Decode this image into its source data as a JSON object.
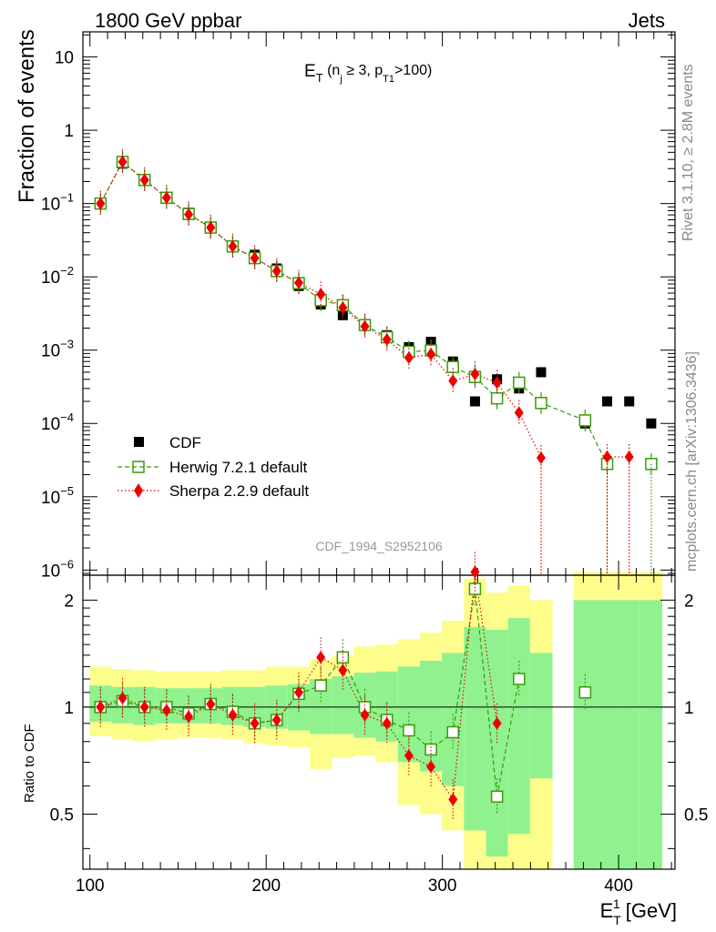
{
  "header": {
    "left": "1800 GeV ppbar",
    "right": "Jets"
  },
  "side_labels": {
    "rivet": "Rivet 3.1.10, ≥ 2.8M events",
    "mcplots": "mcplots.cern.ch [arXiv:1306.3436]"
  },
  "chart_data": {
    "type": "scatter",
    "title_main": "E",
    "title_sub": "T",
    "title_rest_1": " (n",
    "title_sub_j": "j",
    "title_rest_2": " ≥ 3, p",
    "title_sub_t1": "T1",
    "title_rest_3": ">100)",
    "analysis_id": "CDF_1994_S2952106",
    "ylabel": "Fraction of events",
    "ratio_ylabel": "Ratio to CDF",
    "xlabel_main": "E",
    "xlabel_sup": "1",
    "xlabel_sub": "T",
    "xlabel_unit": " [GeV]",
    "xlim": [
      96,
      432
    ],
    "ylim": [
      8.5e-07,
      22
    ],
    "yscale": "log",
    "ratio_ylim": [
      0.35,
      2.35
    ],
    "ratio_yscale": "log",
    "x_ticks": [
      "100",
      "200",
      "300",
      "400"
    ],
    "y_ticks": [
      "10",
      "1",
      "10^-1",
      "10^-2",
      "10^-3",
      "10^-4",
      "10^-5",
      "10^-6"
    ],
    "ratio_ticks": [
      "0.5",
      "1",
      "2"
    ],
    "x": [
      106,
      118.5,
      131,
      143.5,
      156,
      168.5,
      181,
      193.5,
      206,
      218.5,
      231,
      243.5,
      256,
      268.5,
      281,
      293.5,
      306,
      318.5,
      331,
      343.5,
      356,
      381,
      393.5,
      406,
      418.5
    ],
    "series": [
      {
        "name": "CDF",
        "color": "#000000",
        "marker": "square-filled",
        "values": [
          0.1,
          0.35,
          0.21,
          0.12,
          0.075,
          0.046,
          0.027,
          0.02,
          0.013,
          0.0075,
          0.0042,
          0.003,
          0.0022,
          0.0016,
          0.0011,
          0.0013,
          0.0007,
          0.0002,
          0.0004,
          0.0003,
          0.0005,
          0.0001,
          0.0002,
          0.0002,
          0.0001
        ]
      },
      {
        "name": "Herwig 7.2.1 default",
        "color": "#3a9a0a",
        "marker": "square-open",
        "line": "dashed",
        "values": [
          0.1,
          0.37,
          0.21,
          0.12,
          0.072,
          0.047,
          0.026,
          0.018,
          0.012,
          0.0082,
          0.0048,
          0.0041,
          0.0022,
          0.0015,
          0.00095,
          0.00099,
          0.00059,
          0.00043,
          0.00022,
          0.00036,
          0.00019,
          0.00011,
          2.8e-05,
          null,
          2.8e-05
        ]
      },
      {
        "name": "Sherpa 2.2.9 default",
        "color": "#ee0000",
        "marker": "diamond-filled",
        "line": "dotted",
        "values": [
          0.1,
          0.37,
          0.21,
          0.12,
          0.071,
          0.047,
          0.026,
          0.018,
          0.012,
          0.0083,
          0.0058,
          0.0038,
          0.0021,
          0.0014,
          0.00079,
          0.00088,
          0.00038,
          0.00047,
          0.00036,
          0.00014,
          3.4e-05,
          null,
          3.5e-05,
          3.5e-05,
          null
        ]
      }
    ],
    "ratio_series": [
      {
        "name": "Herwig 7.2.1 default",
        "values": [
          1.0,
          1.04,
          1.0,
          1.0,
          0.96,
          1.02,
          0.97,
          0.9,
          0.92,
          1.09,
          1.15,
          1.38,
          1.0,
          0.92,
          0.86,
          0.76,
          0.85,
          2.15,
          0.56,
          1.2,
          null,
          1.1,
          null,
          null,
          null
        ]
      },
      {
        "name": "Sherpa 2.2.9 default",
        "values": [
          1.0,
          1.06,
          1.0,
          0.98,
          0.94,
          1.02,
          0.95,
          0.9,
          0.92,
          1.1,
          1.38,
          1.27,
          0.95,
          0.9,
          0.73,
          0.68,
          0.55,
          2.4,
          0.9,
          null,
          null,
          null,
          null,
          null,
          null
        ]
      }
    ],
    "legend": [
      "CDF",
      "Herwig 7.2.1 default",
      "Sherpa 2.2.9 default"
    ],
    "band_colors": {
      "inner": "#8ff28f",
      "outer": "#fdfd8c"
    }
  }
}
